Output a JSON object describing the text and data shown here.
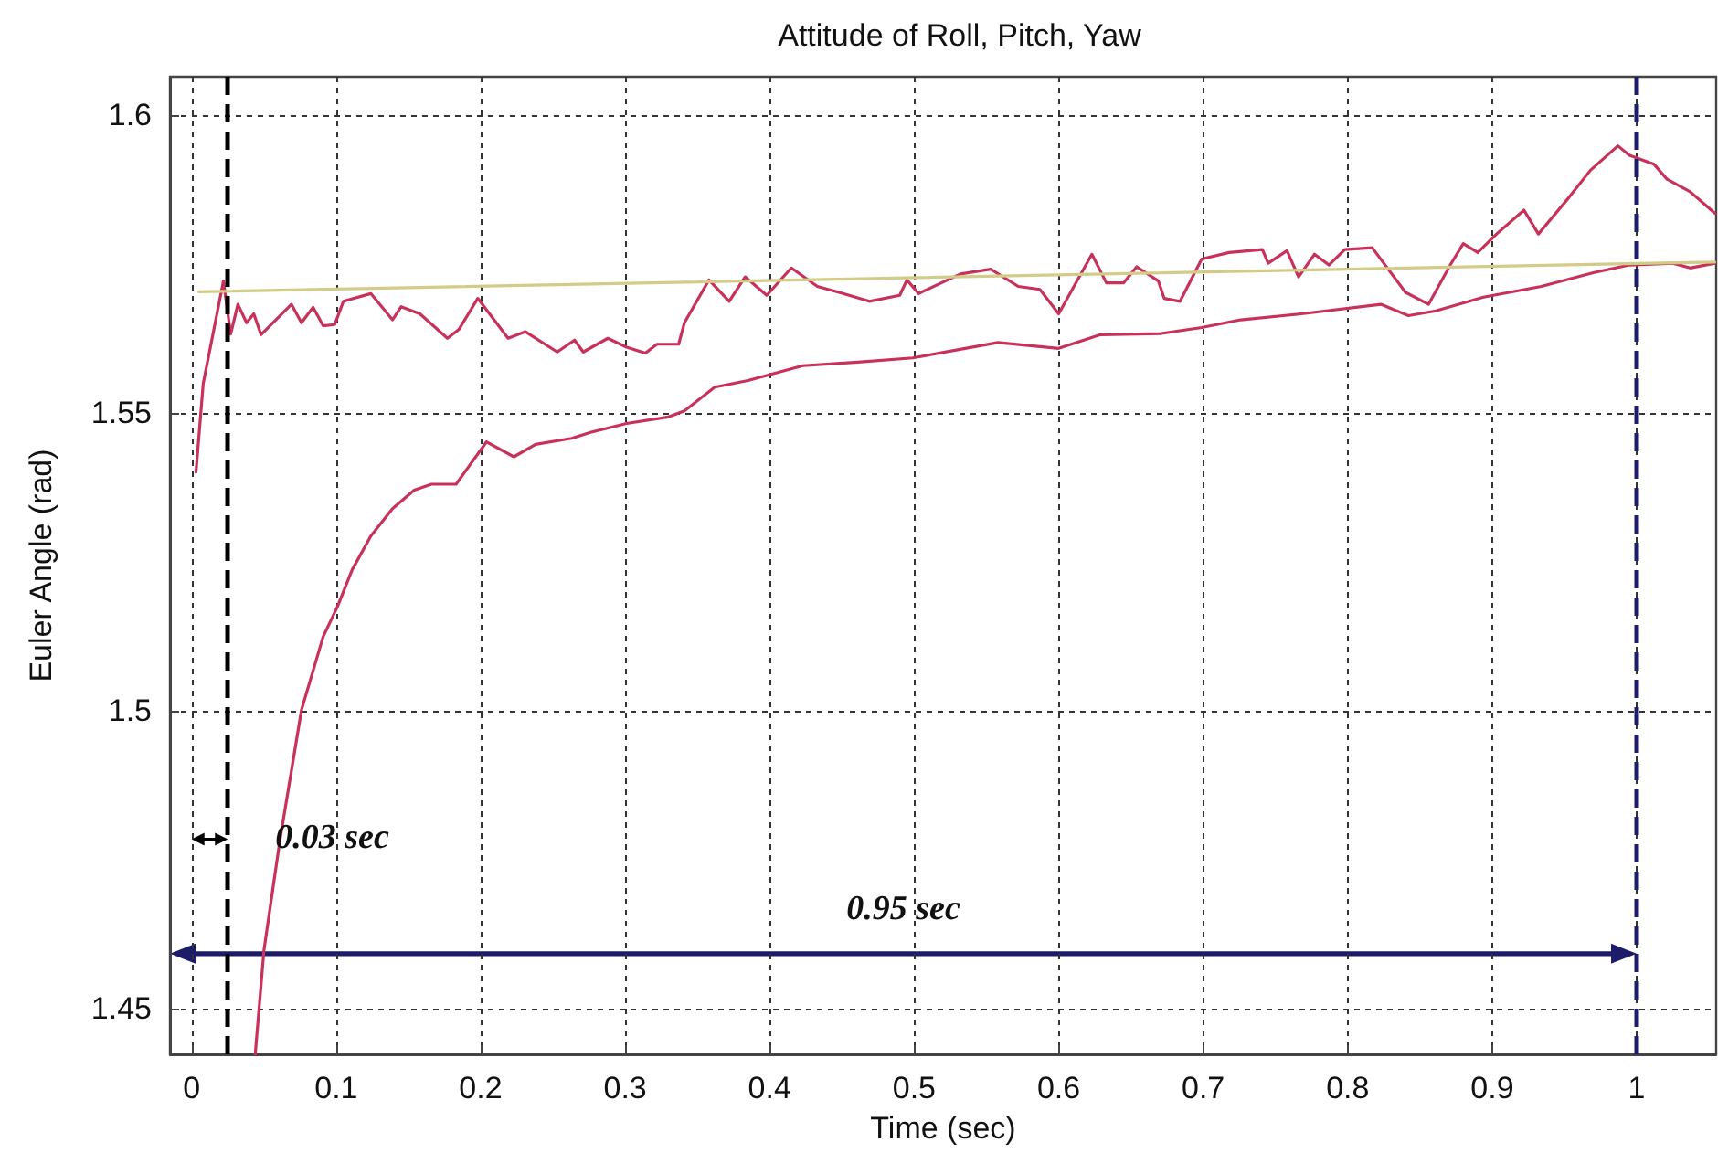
{
  "chart_data": {
    "type": "line",
    "title": "Attitude of Roll, Pitch, Yaw",
    "xlabel": "Time (sec)",
    "ylabel": "Euler Angle (rad)",
    "xlim": [
      -0.015,
      1.055
    ],
    "ylim": [
      1.4423,
      1.6064
    ],
    "xticks": [
      0,
      0.1,
      0.2,
      0.3,
      0.4,
      0.5,
      0.6,
      0.7,
      0.8,
      0.9,
      1
    ],
    "yticks": [
      1.45,
      1.5,
      1.55,
      1.6
    ],
    "grid": true,
    "marker": "none",
    "line_style": "solid",
    "series": [
      {
        "color": "#c8325a",
        "x": [
          0.003,
          0.008,
          0.022,
          0.027,
          0.032,
          0.038,
          0.043,
          0.048,
          0.069,
          0.076,
          0.084,
          0.091,
          0.099,
          0.105,
          0.124,
          0.139,
          0.145,
          0.158,
          0.177,
          0.185,
          0.198,
          0.219,
          0.231,
          0.253,
          0.265,
          0.271,
          0.288,
          0.301,
          0.314,
          0.322,
          0.337,
          0.341,
          0.358,
          0.372,
          0.383,
          0.398,
          0.415,
          0.433,
          0.448,
          0.469,
          0.49,
          0.495,
          0.503,
          0.532,
          0.553,
          0.572,
          0.587,
          0.6,
          0.623,
          0.633,
          0.645,
          0.654,
          0.669,
          0.673,
          0.684,
          0.699,
          0.718,
          0.741,
          0.745,
          0.758,
          0.766,
          0.777,
          0.787,
          0.798,
          0.817,
          0.84,
          0.856,
          0.871,
          0.88,
          0.89,
          0.903,
          0.922,
          0.932,
          0.953,
          0.968,
          0.987,
          0.995,
          1.012,
          1.021,
          1.037,
          1.054
        ],
        "values": [
          1.54,
          1.5549,
          1.5721,
          1.5632,
          1.5682,
          1.5651,
          1.5666,
          1.5631,
          1.5682,
          1.5651,
          1.5677,
          1.5646,
          1.5648,
          1.5687,
          1.57,
          1.5656,
          1.5678,
          1.5666,
          1.5625,
          1.564,
          1.5692,
          1.5625,
          1.5636,
          1.5602,
          1.5622,
          1.5602,
          1.5625,
          1.561,
          1.56,
          1.5615,
          1.5615,
          1.5651,
          1.5723,
          1.5687,
          1.5728,
          1.5697,
          1.5743,
          1.5712,
          1.5702,
          1.5687,
          1.5697,
          1.5723,
          1.57,
          1.5733,
          1.5741,
          1.5712,
          1.5707,
          1.5666,
          1.5766,
          1.5718,
          1.5718,
          1.5745,
          1.5721,
          1.5692,
          1.5687,
          1.5758,
          1.5769,
          1.5774,
          1.5751,
          1.5772,
          1.5728,
          1.5766,
          1.5748,
          1.5774,
          1.5777,
          1.5702,
          1.5682,
          1.5748,
          1.5784,
          1.5769,
          1.58,
          1.584,
          1.58,
          1.5861,
          1.5907,
          1.5948,
          1.5932,
          1.5917,
          1.5892,
          1.5871,
          1.5835
        ]
      },
      {
        "color": "#c8325a",
        "x": [
          0.044,
          0.05,
          0.061,
          0.076,
          0.091,
          0.101,
          0.111,
          0.124,
          0.139,
          0.154,
          0.166,
          0.183,
          0.204,
          0.223,
          0.238,
          0.263,
          0.276,
          0.301,
          0.33,
          0.341,
          0.362,
          0.385,
          0.423,
          0.461,
          0.499,
          0.558,
          0.6,
          0.629,
          0.671,
          0.699,
          0.726,
          0.768,
          0.823,
          0.842,
          0.861,
          0.894,
          0.934,
          0.97,
          0.995,
          1.025,
          1.037,
          1.054
        ],
        "values": [
          1.4423,
          1.4597,
          1.4781,
          1.5001,
          1.5124,
          1.5175,
          1.5236,
          1.5293,
          1.5339,
          1.537,
          1.538,
          1.538,
          1.5451,
          1.5426,
          1.5447,
          1.5457,
          1.5467,
          1.5482,
          1.5493,
          1.5503,
          1.5543,
          1.5554,
          1.5579,
          1.5585,
          1.5592,
          1.5618,
          1.5608,
          1.5631,
          1.5633,
          1.5643,
          1.5656,
          1.5666,
          1.5682,
          1.5663,
          1.5671,
          1.5694,
          1.5712,
          1.5735,
          1.5748,
          1.5751,
          1.5743,
          1.5751
        ]
      },
      {
        "color": "#d2cc88",
        "x": [
          0.005,
          1.054
        ],
        "values": [
          1.5703,
          1.5753
        ]
      }
    ],
    "ref_lines": [
      {
        "axis": "x",
        "value": 0.025,
        "color": "#000000",
        "line_style": "dashed"
      },
      {
        "axis": "x",
        "value": 1,
        "color": "#1c1c6a",
        "line_style": "dashed"
      }
    ],
    "annotations": [
      "0.03 sec",
      "0.95 sec"
    ]
  }
}
